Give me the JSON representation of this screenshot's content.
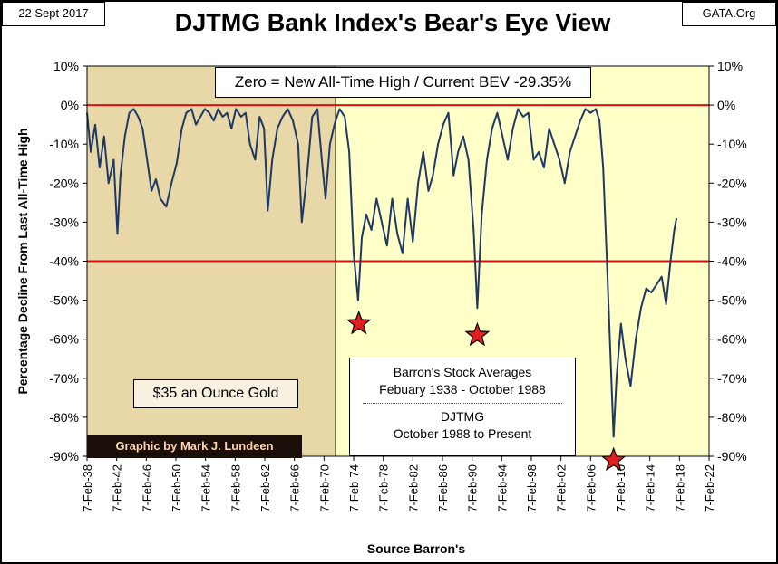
{
  "header": {
    "date": "22 Sept 2017",
    "source_tag": "GATA.Org"
  },
  "chart_data": {
    "type": "line",
    "title": "DJTMG Bank Index's Bear's Eye View",
    "subtitle": "Zero = New All-Time High / Current BEV -29.35%",
    "xlabel": "Source Barron's",
    "ylabel": "Percentage Decline From Last All-Time High",
    "ylim": [
      -90,
      10
    ],
    "xlim": [
      1938.1,
      2022.1
    ],
    "y_tick_labels": [
      "10%",
      "0%",
      "-10%",
      "-20%",
      "-30%",
      "-40%",
      "-50%",
      "-60%",
      "-70%",
      "-80%",
      "-90%"
    ],
    "x_tick_labels": [
      "7-Feb-38",
      "7-Feb-42",
      "7-Feb-46",
      "7-Feb-50",
      "7-Feb-54",
      "7-Feb-58",
      "7-Feb-62",
      "7-Feb-66",
      "7-Feb-70",
      "7-Feb-74",
      "7-Feb-78",
      "7-Feb-82",
      "7-Feb-86",
      "7-Feb-90",
      "7-Feb-94",
      "7-Feb-98",
      "7-Feb-02",
      "7-Feb-06",
      "7-Feb-10",
      "7-Feb-14",
      "7-Feb-18",
      "7-Feb-22"
    ],
    "reference_lines": [
      0,
      -40
    ],
    "shaded_regions": [
      {
        "from": 1938.1,
        "to": 1971.6,
        "color": "#e8d8a8"
      },
      {
        "from": 1971.6,
        "to": 2022.1,
        "color": "#ffffc8"
      }
    ],
    "series": [
      {
        "color": "#1f3864",
        "x": [
          1938.1,
          1938.6,
          1939.2,
          1939.8,
          1940.4,
          1941.0,
          1941.7,
          1942.2,
          1942.6,
          1943.2,
          1943.8,
          1944.4,
          1945.0,
          1945.6,
          1946.2,
          1946.8,
          1947.4,
          1948.0,
          1948.8,
          1949.5,
          1950.2,
          1950.9,
          1951.5,
          1952.2,
          1952.8,
          1953.4,
          1954.0,
          1954.6,
          1955.2,
          1955.8,
          1956.4,
          1957.0,
          1957.6,
          1958.2,
          1958.9,
          1959.5,
          1960.1,
          1960.8,
          1961.4,
          1962.0,
          1962.5,
          1963.1,
          1963.8,
          1964.5,
          1965.2,
          1965.9,
          1966.6,
          1967.1,
          1967.8,
          1968.5,
          1969.2,
          1969.8,
          1970.3,
          1970.9,
          1971.5,
          1972.2,
          1972.9,
          1973.5,
          1974.1,
          1974.7,
          1975.2,
          1975.8,
          1976.5,
          1977.2,
          1977.9,
          1978.6,
          1979.3,
          1980.0,
          1980.7,
          1981.4,
          1982.1,
          1982.8,
          1983.5,
          1984.2,
          1984.8,
          1985.5,
          1986.2,
          1986.9,
          1987.6,
          1988.2,
          1988.9,
          1989.6,
          1990.3,
          1990.8,
          1991.4,
          1992.1,
          1992.8,
          1993.5,
          1994.2,
          1994.9,
          1995.6,
          1996.3,
          1997.0,
          1997.7,
          1998.4,
          1999.1,
          1999.8,
          2000.5,
          2001.2,
          2001.9,
          2002.6,
          2003.3,
          2004.0,
          2004.7,
          2005.4,
          2006.1,
          2006.8,
          2007.3,
          2007.8,
          2008.3,
          2008.8,
          2009.2,
          2009.6,
          2010.2,
          2010.8,
          2011.5,
          2012.2,
          2012.9,
          2013.6,
          2014.3,
          2015.0,
          2015.7,
          2016.3,
          2016.9,
          2017.4,
          2017.7
        ],
        "y": [
          -2,
          -12,
          -5,
          -16,
          -8,
          -20,
          -14,
          -33,
          -18,
          -8,
          -2,
          -1,
          -3,
          -6,
          -14,
          -22,
          -19,
          -24,
          -26,
          -20,
          -15,
          -6,
          -2,
          -1,
          -5,
          -3,
          -1,
          -2,
          -4,
          -1,
          -3,
          -2,
          -6,
          -1,
          -3,
          -2,
          -10,
          -14,
          -3,
          -6,
          -27,
          -14,
          -6,
          -3,
          -1,
          -4,
          -10,
          -30,
          -18,
          -3,
          -1,
          -14,
          -24,
          -10,
          -5,
          -1,
          -3,
          -12,
          -38,
          -50,
          -34,
          -28,
          -32,
          -24,
          -30,
          -36,
          -24,
          -33,
          -38,
          -24,
          -35,
          -20,
          -12,
          -22,
          -18,
          -10,
          -5,
          -2,
          -18,
          -12,
          -8,
          -14,
          -32,
          -52,
          -28,
          -14,
          -6,
          -2,
          -8,
          -14,
          -6,
          -1,
          -3,
          -2,
          -14,
          -12,
          -16,
          -6,
          -10,
          -14,
          -20,
          -12,
          -8,
          -4,
          -1,
          -2,
          -1,
          -4,
          -16,
          -40,
          -65,
          -85,
          -70,
          -56,
          -65,
          -72,
          -60,
          -52,
          -47,
          -48,
          -46,
          -44,
          -51,
          -40,
          -32,
          -29
        ]
      }
    ],
    "markers": [
      {
        "x": 1974.8,
        "y": -56,
        "shape": "star",
        "color": "#e02020"
      },
      {
        "x": 1990.8,
        "y": -59,
        "shape": "star",
        "color": "#e02020"
      },
      {
        "x": 2009.2,
        "y": -91,
        "shape": "star",
        "color": "#e02020"
      }
    ]
  },
  "annotations": {
    "gold_era": "$35 an Ounce Gold",
    "credit": "Graphic by Mark J. Lundeen",
    "sources": {
      "line1": "Barron's Stock Averages",
      "line2": "Febuary 1938 - October 1988",
      "line3": "DJTMG",
      "line4": "October 1988 to Present"
    }
  }
}
